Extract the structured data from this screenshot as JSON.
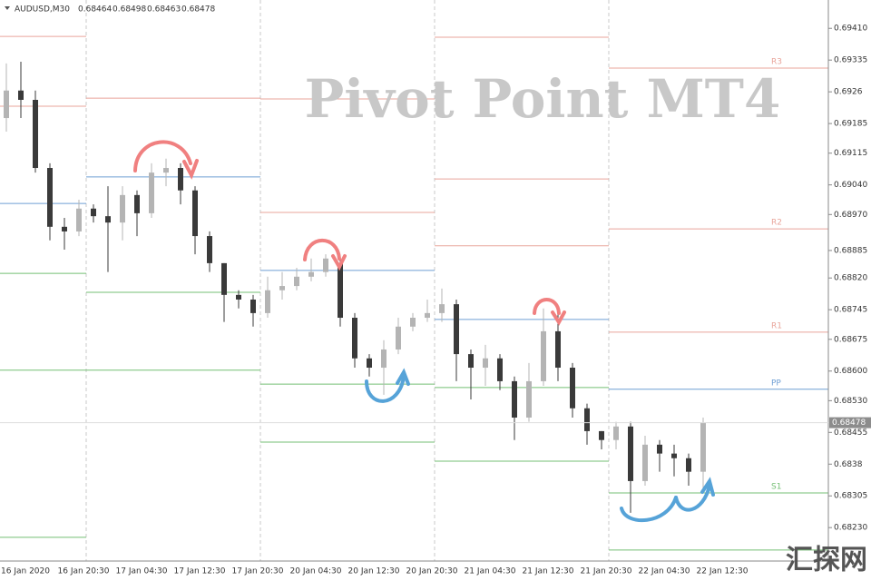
{
  "chart_data": {
    "type": "candlestick",
    "title": "Pivot Point MT4",
    "header": {
      "symbol": "AUDUSD,M30",
      "ohlc": [
        0.68464,
        0.68498,
        0.68463,
        0.68478
      ]
    },
    "watermark": "汇探网",
    "x_labels": [
      "16 Jan 2020",
      "16 Jan 20:30",
      "17 Jan 04:30",
      "17 Jan 12:30",
      "17 Jan 20:30",
      "20 Jan 04:30",
      "20 Jan 12:30",
      "20 Jan 20:30",
      "21 Jan 04:30",
      "21 Jan 12:30",
      "21 Jan 20:30",
      "22 Jan 04:30",
      "22 Jan 12:30"
    ],
    "open": [
      0.69198,
      0.69263,
      0.69241,
      0.6908,
      0.68941,
      0.6893,
      0.68984,
      0.68966,
      0.68951,
      0.69016,
      0.68973,
      0.69069,
      0.6908,
      0.69027,
      0.68919,
      0.68855,
      0.6878,
      0.68769,
      0.68737,
      0.68791,
      0.68801,
      0.68823,
      0.68834,
      0.68855,
      0.68726,
      0.6863,
      0.68608,
      0.68651,
      0.68705,
      0.68726,
      0.68737,
      0.68758,
      0.6864,
      0.68608,
      0.6863,
      0.68576,
      0.6849,
      0.68576,
      0.68694,
      0.68608,
      0.68512,
      0.68458,
      0.68437,
      0.68469,
      0.6834,
      0.68426,
      0.68405,
      0.68394,
      0.68362
    ],
    "high": [
      0.69327,
      0.69331,
      0.69263,
      0.69091,
      0.68962,
      0.69005,
      0.68994,
      0.69037,
      0.69037,
      0.69027,
      0.69091,
      0.69102,
      0.69091,
      0.69037,
      0.6893,
      0.68855,
      0.68791,
      0.6878,
      0.68823,
      0.68834,
      0.68844,
      0.68866,
      0.68876,
      0.68866,
      0.68737,
      0.6864,
      0.68673,
      0.68726,
      0.68737,
      0.68769,
      0.68795,
      0.68769,
      0.68651,
      0.68662,
      0.6864,
      0.68587,
      0.68619,
      0.68748,
      0.68737,
      0.68619,
      0.68523,
      0.68458,
      0.6848,
      0.6848,
      0.68447,
      0.68437,
      0.68426,
      0.68405,
      0.6849
    ],
    "low": [
      0.69166,
      0.69198,
      0.69069,
      0.68909,
      0.68887,
      0.68919,
      0.68951,
      0.68834,
      0.68909,
      0.68919,
      0.68962,
      0.69037,
      0.68994,
      0.68876,
      0.68834,
      0.68716,
      0.68748,
      0.68705,
      0.68726,
      0.68769,
      0.68791,
      0.68812,
      0.68823,
      0.68705,
      0.68608,
      0.68587,
      0.68544,
      0.6864,
      0.68694,
      0.68716,
      0.68716,
      0.68576,
      0.68533,
      0.68565,
      0.68555,
      0.68437,
      0.6848,
      0.68565,
      0.68576,
      0.6849,
      0.68426,
      0.68415,
      0.68415,
      0.68265,
      0.68329,
      0.68362,
      0.68351,
      0.68329,
      0.68319
    ],
    "close": [
      0.69263,
      0.69241,
      0.6908,
      0.68941,
      0.6893,
      0.68984,
      0.68966,
      0.68951,
      0.69016,
      0.68973,
      0.69069,
      0.6908,
      0.69027,
      0.68919,
      0.68855,
      0.6878,
      0.68769,
      0.68737,
      0.68791,
      0.68801,
      0.68823,
      0.68834,
      0.68866,
      0.68726,
      0.6863,
      0.68608,
      0.68651,
      0.68705,
      0.68726,
      0.68737,
      0.68758,
      0.6864,
      0.68608,
      0.6863,
      0.68576,
      0.6849,
      0.68576,
      0.68694,
      0.68608,
      0.68512,
      0.68458,
      0.68437,
      0.68469,
      0.6834,
      0.68426,
      0.68405,
      0.68394,
      0.68362,
      0.68478
    ],
    "up_color": "#b4b4b4",
    "down_color": "#3a3a3a",
    "current_price": 0.68478,
    "ylim": [
      0.68151,
      0.69477
    ],
    "yticks": [
      {
        "value": 0.6941,
        "label": "0.69410"
      },
      0.69335,
      0.6926,
      0.69185,
      0.69115,
      {
        "value": 0.6904,
        "label": "0.69040"
      },
      {
        "value": 0.6897,
        "label": "0.68970"
      },
      0.68885,
      {
        "value": 0.6882,
        "label": "0.68820"
      },
      0.68745,
      0.68675,
      {
        "value": 0.686,
        "label": "0.68600"
      },
      {
        "value": 0.6853,
        "label": "0.68530"
      },
      0.68455,
      0.6838,
      0.68305,
      {
        "value": 0.6823,
        "label": "0.68230"
      }
    ],
    "pivot_colors": {
      "resistance": "#e9a59b",
      "pivot": "#6f9fd4",
      "support": "#74bf74"
    },
    "pivots": [
      {
        "levels": [
          {
            "value": 0.69391,
            "kind": "resistance"
          },
          {
            "value": 0.69226,
            "kind": "resistance"
          },
          {
            "value": 0.68996,
            "kind": "pivot"
          },
          {
            "value": 0.68831,
            "kind": "support"
          },
          {
            "value": 0.68602,
            "kind": "support"
          },
          {
            "value": 0.68207,
            "kind": "support"
          }
        ]
      },
      {
        "levels": [
          {
            "value": 0.69245,
            "kind": "resistance"
          },
          {
            "value": 0.69059,
            "kind": "pivot"
          },
          {
            "value": 0.68786,
            "kind": "support"
          },
          {
            "value": 0.68602,
            "kind": "support"
          }
        ]
      },
      {
        "levels": [
          {
            "value": 0.69243,
            "kind": "resistance"
          },
          {
            "value": 0.68975,
            "kind": "resistance"
          },
          {
            "value": 0.68838,
            "kind": "pivot"
          },
          {
            "value": 0.68569,
            "kind": "support"
          },
          {
            "value": 0.68432,
            "kind": "support"
          }
        ]
      },
      {
        "levels": [
          {
            "value": 0.69389,
            "kind": "resistance"
          },
          {
            "value": 0.69054,
            "kind": "resistance"
          },
          {
            "value": 0.68896,
            "kind": "resistance"
          },
          {
            "value": 0.68722,
            "kind": "pivot"
          },
          {
            "value": 0.68561,
            "kind": "support"
          },
          {
            "value": 0.68387,
            "kind": "support"
          }
        ]
      },
      {
        "levels": [
          {
            "name": "R3",
            "value": 0.69316,
            "kind": "resistance"
          },
          {
            "name": "R2",
            "value": 0.68936,
            "kind": "resistance"
          },
          {
            "name": "R1",
            "value": 0.68692,
            "kind": "resistance"
          },
          {
            "name": "PP",
            "value": 0.68557,
            "kind": "pivot"
          },
          {
            "name": "S1",
            "value": 0.68312,
            "kind": "support"
          },
          {
            "value": 0.68177,
            "kind": "support"
          }
        ]
      }
    ]
  }
}
